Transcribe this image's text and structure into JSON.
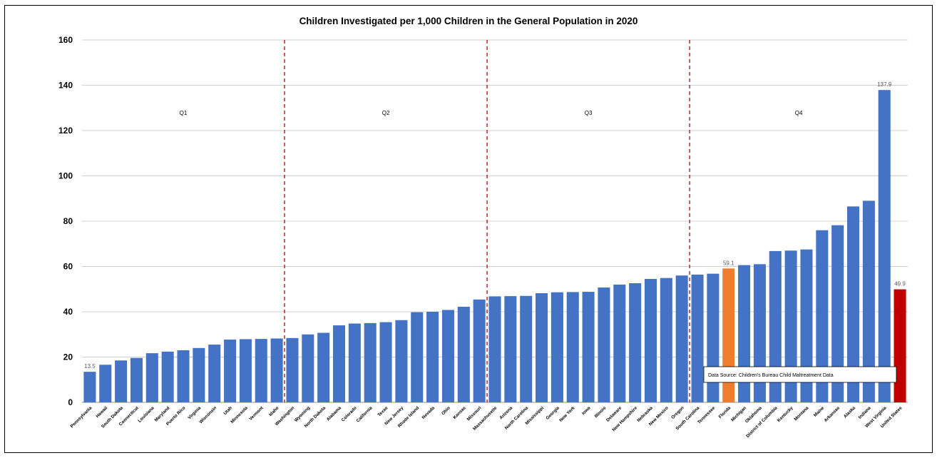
{
  "chart_data": {
    "type": "bar",
    "title": "Children Investigated per 1,000 Children in the General Population in 2020",
    "xlabel": "",
    "ylabel": "",
    "ylim": [
      0,
      160
    ],
    "yticks": [
      0,
      20,
      40,
      60,
      80,
      100,
      120,
      140,
      160
    ],
    "grid": "horizontal",
    "categories": [
      "Pennsylvania",
      "Hawaii",
      "South Dakota",
      "Connecticut",
      "Louisiana",
      "Maryland",
      "Puerto Rico",
      "Virginia",
      "Wisconsin",
      "Utah",
      "Minnesota",
      "Vermont",
      "Idaho",
      "Washington",
      "Wyoming",
      "North Dakota",
      "Alabama",
      "Colorado",
      "California",
      "Texas",
      "New Jersey",
      "Rhode Island",
      "Nevada",
      "Ohio",
      "Kansas",
      "Missouri",
      "Massachusetts",
      "Arizona",
      "North Carolina",
      "Mississippi",
      "Georgia",
      "New York",
      "Iowa",
      "Illinois",
      "Delaware",
      "New Hampshire",
      "Nebraska",
      "New Mexico",
      "Oregon",
      "South Carolina",
      "Tennessee",
      "Florida",
      "Michigan",
      "Oklahoma",
      "District of Columbia",
      "Kentucky",
      "Montana",
      "Maine",
      "Arkansas",
      "Alaska",
      "Indiana",
      "West Virginia",
      "United States"
    ],
    "values": [
      13.5,
      16.6,
      18.5,
      19.6,
      21.7,
      22.4,
      23.0,
      24.0,
      25.5,
      27.7,
      27.9,
      28.0,
      28.2,
      28.4,
      30.0,
      30.7,
      34.0,
      34.8,
      35.0,
      35.4,
      36.3,
      39.8,
      40.0,
      40.8,
      42.2,
      45.4,
      46.8,
      46.9,
      47.0,
      48.2,
      48.6,
      48.7,
      48.8,
      50.7,
      52.0,
      52.6,
      54.5,
      54.9,
      56.0,
      56.4,
      56.8,
      59.1,
      60.6,
      61.0,
      66.8,
      67.0,
      67.5,
      76.0,
      78.2,
      86.5,
      89.0,
      137.9,
      49.9
    ],
    "bar_colors": {
      "default": "#4472C4",
      "Florida": "#ED7D31",
      "United States": "#C00000"
    },
    "data_labels": [
      {
        "category": "Pennsylvania",
        "text": "13.5"
      },
      {
        "category": "Florida",
        "text": "59.1"
      },
      {
        "category": "West Virginia",
        "text": "137.9"
      },
      {
        "category": "United States",
        "text": "49.9"
      }
    ],
    "quartiles": [
      {
        "label": "Q1",
        "start_index": 0,
        "end_index": 12
      },
      {
        "label": "Q2",
        "start_index": 13,
        "end_index": 25
      },
      {
        "label": "Q3",
        "start_index": 26,
        "end_index": 38
      },
      {
        "label": "Q4",
        "start_index": 39,
        "end_index": 52
      }
    ],
    "divider_after_index": [
      12,
      25,
      38
    ],
    "divider_color": "#C00000",
    "annotation": "Data Source:  Children's Bureau Child Maltreatment Data"
  }
}
